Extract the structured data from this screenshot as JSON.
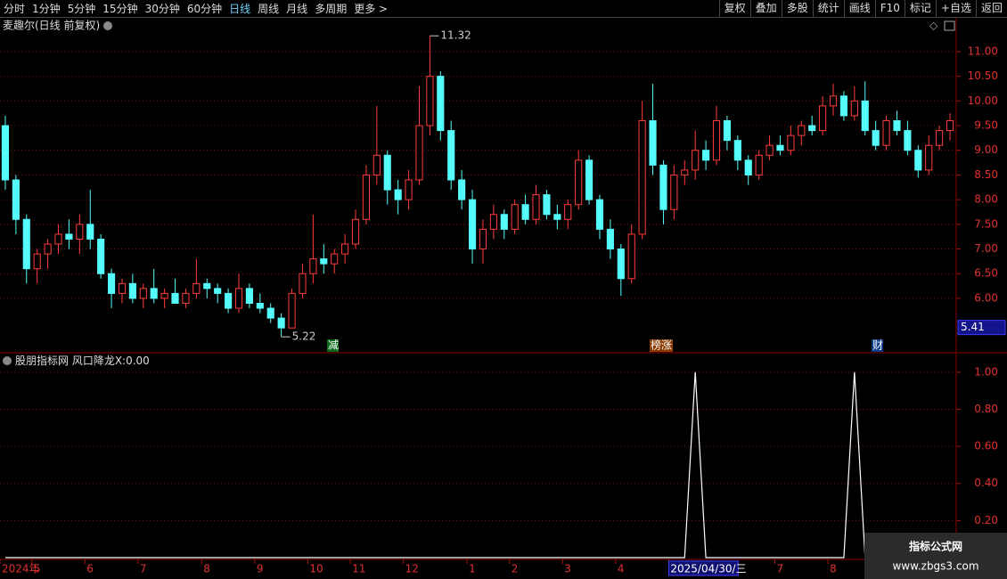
{
  "toolbar": {
    "left": [
      "分时",
      "1分钟",
      "5分钟",
      "15分钟",
      "30分钟",
      "60分钟",
      "日线",
      "周线",
      "月线",
      "多周期",
      "更多 >"
    ],
    "right": [
      "复权",
      "叠加",
      "多股",
      "统计",
      "画线",
      "F10",
      "标记",
      "+自选",
      "返回"
    ]
  },
  "markers": [
    "减",
    "榜涨",
    "财"
  ],
  "watermark": {
    "title": "指标公式网",
    "url": "www.zbgs3.com"
  },
  "chart_data": [
    {
      "type": "candlestick",
      "title": "麦趣尔(日线 前复权)",
      "up_color": "#ff3c3c",
      "down_color": "#54fcfc",
      "ohlc": [
        [
          9.5,
          9.7,
          8.2,
          8.4
        ],
        [
          8.4,
          8.5,
          7.3,
          7.6
        ],
        [
          7.6,
          7.7,
          6.3,
          6.6
        ],
        [
          6.6,
          7.0,
          6.3,
          6.9
        ],
        [
          6.9,
          7.2,
          6.6,
          7.1
        ],
        [
          7.1,
          7.5,
          6.9,
          7.3
        ],
        [
          7.3,
          7.6,
          7.0,
          7.2
        ],
        [
          7.2,
          7.7,
          6.9,
          7.5
        ],
        [
          7.5,
          8.2,
          7.0,
          7.2
        ],
        [
          7.2,
          7.3,
          6.4,
          6.5
        ],
        [
          6.5,
          6.6,
          5.8,
          6.1
        ],
        [
          6.1,
          6.4,
          5.9,
          6.3
        ],
        [
          6.3,
          6.5,
          5.9,
          6.0
        ],
        [
          6.0,
          6.3,
          5.8,
          6.2
        ],
        [
          6.2,
          6.6,
          5.9,
          6.0
        ],
        [
          6.0,
          6.2,
          5.8,
          6.1
        ],
        [
          6.1,
          6.4,
          5.9,
          5.9
        ],
        [
          5.9,
          6.2,
          5.8,
          6.1
        ],
        [
          6.1,
          6.8,
          6.0,
          6.3
        ],
        [
          6.3,
          6.4,
          6.0,
          6.2
        ],
        [
          6.2,
          6.3,
          5.9,
          6.1
        ],
        [
          6.1,
          6.2,
          5.7,
          5.8
        ],
        [
          5.8,
          6.5,
          5.7,
          6.2
        ],
        [
          6.2,
          6.3,
          5.8,
          5.9
        ],
        [
          5.9,
          6.1,
          5.7,
          5.8
        ],
        [
          5.8,
          5.9,
          5.5,
          5.6
        ],
        [
          5.6,
          5.7,
          5.22,
          5.4
        ],
        [
          5.4,
          6.2,
          5.4,
          6.1
        ],
        [
          6.1,
          6.7,
          6.0,
          6.5
        ],
        [
          6.5,
          7.7,
          6.3,
          6.8
        ],
        [
          6.8,
          7.1,
          6.5,
          6.7
        ],
        [
          6.7,
          7.0,
          6.5,
          6.9
        ],
        [
          6.9,
          7.3,
          6.7,
          7.1
        ],
        [
          7.1,
          7.8,
          7.0,
          7.6
        ],
        [
          7.6,
          8.7,
          7.5,
          8.5
        ],
        [
          8.5,
          9.9,
          8.3,
          8.9
        ],
        [
          8.9,
          9.0,
          7.9,
          8.2
        ],
        [
          8.2,
          8.4,
          7.7,
          8.0
        ],
        [
          8.0,
          8.6,
          7.8,
          8.4
        ],
        [
          8.4,
          10.3,
          8.3,
          9.5
        ],
        [
          9.5,
          11.32,
          9.3,
          10.5
        ],
        [
          10.5,
          10.6,
          9.2,
          9.4
        ],
        [
          9.4,
          9.6,
          8.2,
          8.4
        ],
        [
          8.4,
          8.6,
          7.8,
          8.0
        ],
        [
          8.0,
          8.2,
          6.7,
          7.0
        ],
        [
          7.0,
          7.6,
          6.7,
          7.4
        ],
        [
          7.4,
          7.9,
          7.2,
          7.7
        ],
        [
          7.7,
          7.8,
          7.2,
          7.4
        ],
        [
          7.4,
          8.0,
          7.3,
          7.9
        ],
        [
          7.9,
          8.1,
          7.5,
          7.6
        ],
        [
          7.6,
          8.3,
          7.5,
          8.1
        ],
        [
          8.1,
          8.2,
          7.6,
          7.7
        ],
        [
          7.7,
          7.9,
          7.4,
          7.6
        ],
        [
          7.6,
          8.0,
          7.4,
          7.9
        ],
        [
          7.9,
          9.0,
          7.8,
          8.8
        ],
        [
          8.8,
          8.9,
          7.9,
          8.0
        ],
        [
          8.0,
          8.1,
          7.2,
          7.4
        ],
        [
          7.4,
          7.6,
          6.8,
          7.0
        ],
        [
          7.0,
          7.1,
          6.05,
          6.4
        ],
        [
          6.4,
          7.5,
          6.3,
          7.3
        ],
        [
          7.3,
          10.0,
          7.2,
          9.6
        ],
        [
          9.6,
          10.35,
          8.5,
          8.7
        ],
        [
          8.7,
          8.8,
          7.5,
          7.8
        ],
        [
          7.8,
          8.7,
          7.6,
          8.5
        ],
        [
          8.5,
          8.8,
          8.3,
          8.6
        ],
        [
          8.6,
          9.4,
          8.4,
          9.0
        ],
        [
          9.0,
          9.2,
          8.6,
          8.8
        ],
        [
          8.8,
          9.9,
          8.7,
          9.6
        ],
        [
          9.6,
          9.7,
          9.0,
          9.2
        ],
        [
          9.2,
          9.3,
          8.6,
          8.8
        ],
        [
          8.8,
          8.9,
          8.3,
          8.5
        ],
        [
          8.5,
          9.0,
          8.4,
          8.9
        ],
        [
          8.9,
          9.3,
          8.8,
          9.1
        ],
        [
          9.1,
          9.3,
          8.9,
          9.0
        ],
        [
          9.0,
          9.5,
          8.9,
          9.3
        ],
        [
          9.3,
          9.6,
          9.1,
          9.5
        ],
        [
          9.5,
          9.7,
          9.3,
          9.4
        ],
        [
          9.4,
          10.1,
          9.3,
          9.9
        ],
        [
          9.9,
          10.35,
          9.7,
          10.1
        ],
        [
          10.1,
          10.2,
          9.6,
          9.7
        ],
        [
          9.7,
          10.3,
          9.6,
          10.0
        ],
        [
          10.0,
          10.4,
          9.3,
          9.4
        ],
        [
          9.4,
          9.6,
          9.0,
          9.1
        ],
        [
          9.1,
          9.7,
          9.0,
          9.6
        ],
        [
          9.6,
          9.8,
          9.3,
          9.4
        ],
        [
          9.4,
          9.6,
          8.9,
          9.0
        ],
        [
          9.0,
          9.1,
          8.45,
          8.6
        ],
        [
          8.6,
          9.3,
          8.5,
          9.1
        ],
        [
          9.1,
          9.5,
          9.0,
          9.4
        ],
        [
          9.4,
          9.75,
          9.2,
          9.6
        ]
      ],
      "ylim": [
        4.97,
        11.36
      ],
      "yticks": [
        {
          "value": 6,
          "label": "6.00"
        },
        {
          "value": 6.5,
          "label": "6.50"
        },
        {
          "value": 7,
          "label": "7.00"
        },
        {
          "value": 7.5,
          "label": "7.50"
        },
        {
          "value": 8,
          "label": "8.00"
        },
        {
          "value": 8.5,
          "label": "8.50"
        },
        {
          "value": 9,
          "label": "9.00"
        },
        {
          "value": 9.5,
          "label": "9.50"
        },
        {
          "value": 10,
          "label": "10.00"
        },
        {
          "value": 10.5,
          "label": "10.50"
        },
        {
          "value": 11,
          "label": "11.00"
        }
      ],
      "max_label": 11.32,
      "min_label": 5.22,
      "cursor_price": 5.41,
      "xticks": [
        {
          "value": 0,
          "label": "2024年"
        },
        {
          "value": 3,
          "label": "5"
        },
        {
          "value": 8,
          "label": "6"
        },
        {
          "value": 13,
          "label": "7"
        },
        {
          "value": 19,
          "label": "8"
        },
        {
          "value": 24,
          "label": "9"
        },
        {
          "value": 29,
          "label": "10"
        },
        {
          "value": 33,
          "label": "11"
        },
        {
          "value": 38,
          "label": "12"
        },
        {
          "value": 44,
          "label": "1"
        },
        {
          "value": 48,
          "label": "2"
        },
        {
          "value": 53,
          "label": "3"
        },
        {
          "value": 58,
          "label": "4"
        },
        {
          "value": 63,
          "label": "2025/04/30/三"
        },
        {
          "value": 73,
          "label": "7"
        },
        {
          "value": 78,
          "label": "8"
        }
      ]
    },
    {
      "type": "line",
      "title": "股朋指标网 风口降龙X:",
      "readout": {
        "value": 0,
        "label": "0.00"
      },
      "color": "#ffffff",
      "values": [
        0,
        0,
        0,
        0,
        0,
        0,
        0,
        0,
        0,
        0,
        0,
        0,
        0,
        0,
        0,
        0,
        0,
        0,
        0,
        0,
        0,
        0,
        0,
        0,
        0,
        0,
        0,
        0,
        0,
        0,
        0,
        0,
        0,
        0,
        0,
        0,
        0,
        0,
        0,
        0,
        0,
        0,
        0,
        0,
        0,
        0,
        0,
        0,
        0,
        0,
        0,
        0,
        0,
        0,
        0,
        0,
        0,
        0,
        0,
        0,
        0,
        0,
        0,
        0,
        0,
        1,
        0,
        0,
        0,
        0,
        0,
        0,
        0,
        0,
        0,
        0,
        0,
        0,
        0,
        0,
        1,
        0,
        0,
        0,
        0,
        0,
        0,
        0,
        0,
        0
      ],
      "ylim": [
        0,
        1.1
      ],
      "yticks": [
        {
          "value": 0.2,
          "label": "0.20"
        },
        {
          "value": 0.4,
          "label": "0.40"
        },
        {
          "value": 0.6,
          "label": "0.60"
        },
        {
          "value": 0.8,
          "label": "0.80"
        },
        {
          "value": 1,
          "label": "1.00"
        }
      ]
    }
  ]
}
